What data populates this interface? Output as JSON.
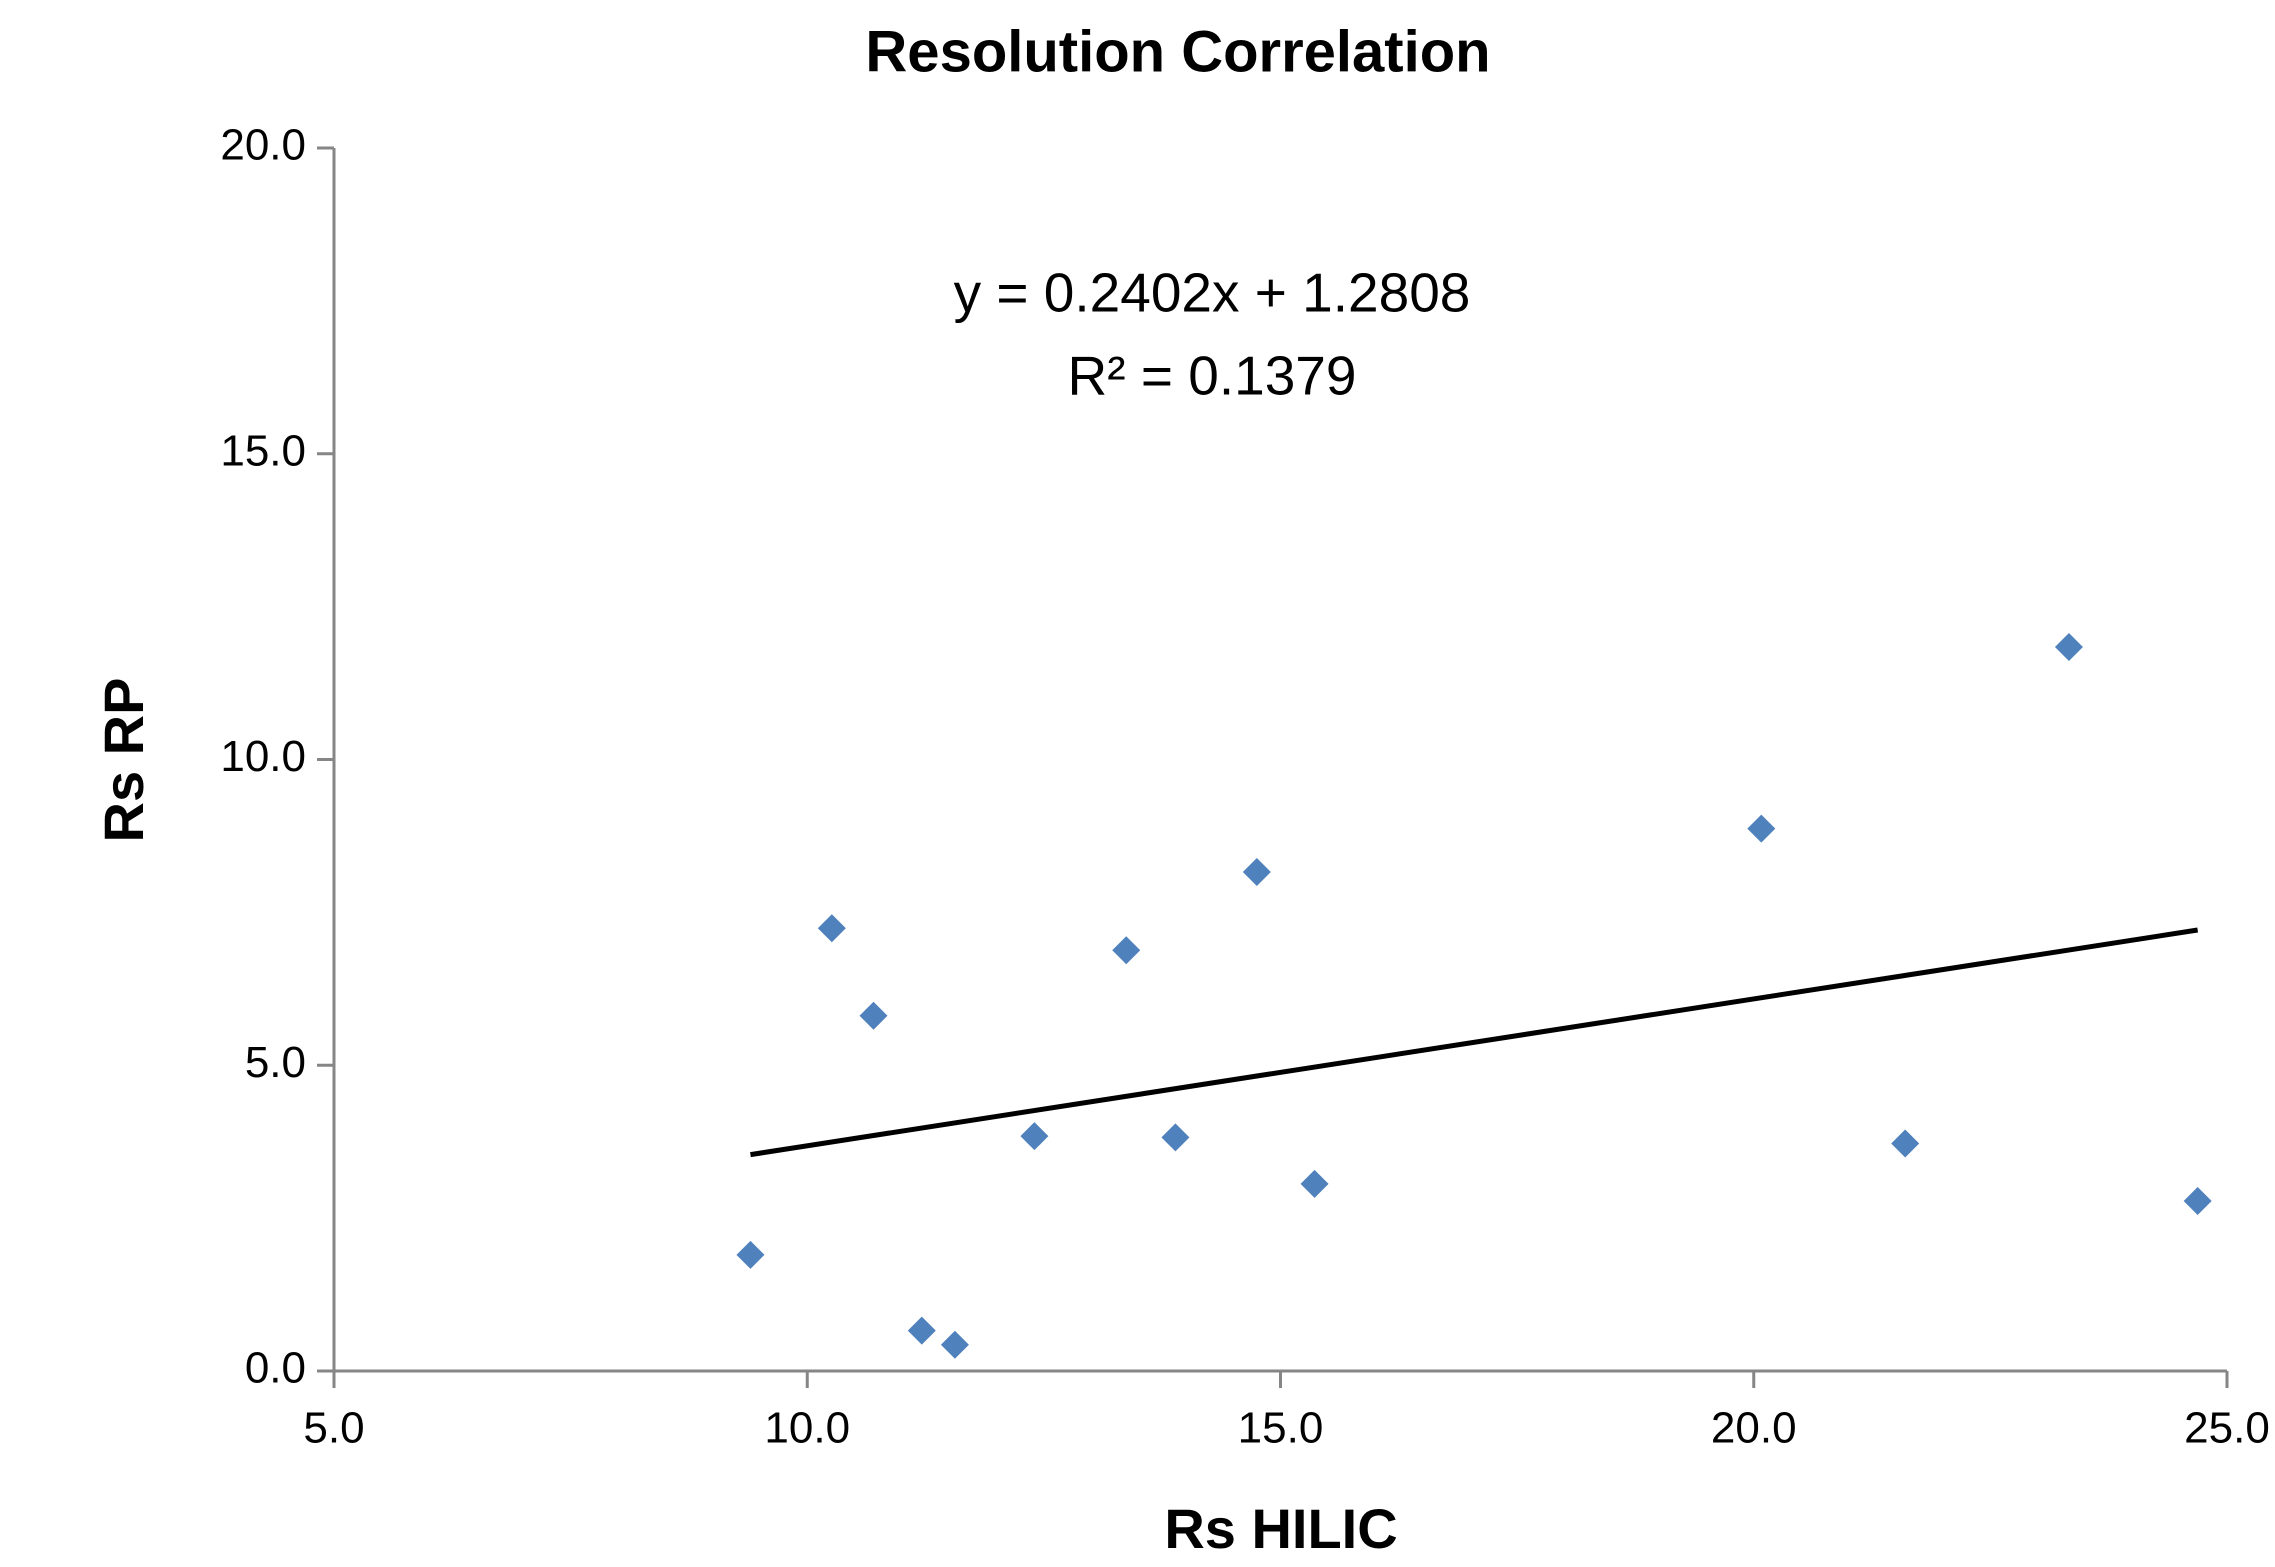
{
  "chart_data": {
    "type": "scatter",
    "title": "Resolution Correlation",
    "x_label": "Rs HILIC",
    "y_label": "Rs RP",
    "series": [
      {
        "name": "Rs RP",
        "color": "#4f81bd",
        "x": [
          9.4,
          10.26,
          10.7,
          11.21,
          11.56,
          12.4,
          13.37,
          13.89,
          14.75,
          15.36,
          20.08,
          21.6,
          23.33,
          24.69
        ],
        "values": [
          1.9,
          7.24,
          5.81,
          0.66,
          0.43,
          3.84,
          6.88,
          3.82,
          8.16,
          3.06,
          8.87,
          3.72,
          11.84,
          2.78
        ]
      }
    ],
    "trendline": {
      "slope": 0.2402,
      "intercept": 1.2808,
      "color": "#000000"
    },
    "annotations": [
      "y = 0.2402x + 1.2808",
      "R² = 0.1379"
    ],
    "xlim": [
      5,
      25
    ],
    "ylim": [
      0,
      20
    ],
    "xticks": [
      {
        "value": 5,
        "label": "5.0"
      },
      {
        "value": 10,
        "label": "10.0"
      },
      {
        "value": 15,
        "label": "15.0"
      },
      {
        "value": 20,
        "label": "20.0"
      },
      {
        "value": 25,
        "label": "25.0"
      }
    ],
    "yticks": [
      {
        "value": 0,
        "label": "0.0"
      },
      {
        "value": 5,
        "label": "5.0"
      },
      {
        "value": 10,
        "label": "10.0"
      },
      {
        "value": 15,
        "label": "15.0"
      },
      {
        "value": 20,
        "label": "20.0"
      }
    ],
    "grid": false
  }
}
